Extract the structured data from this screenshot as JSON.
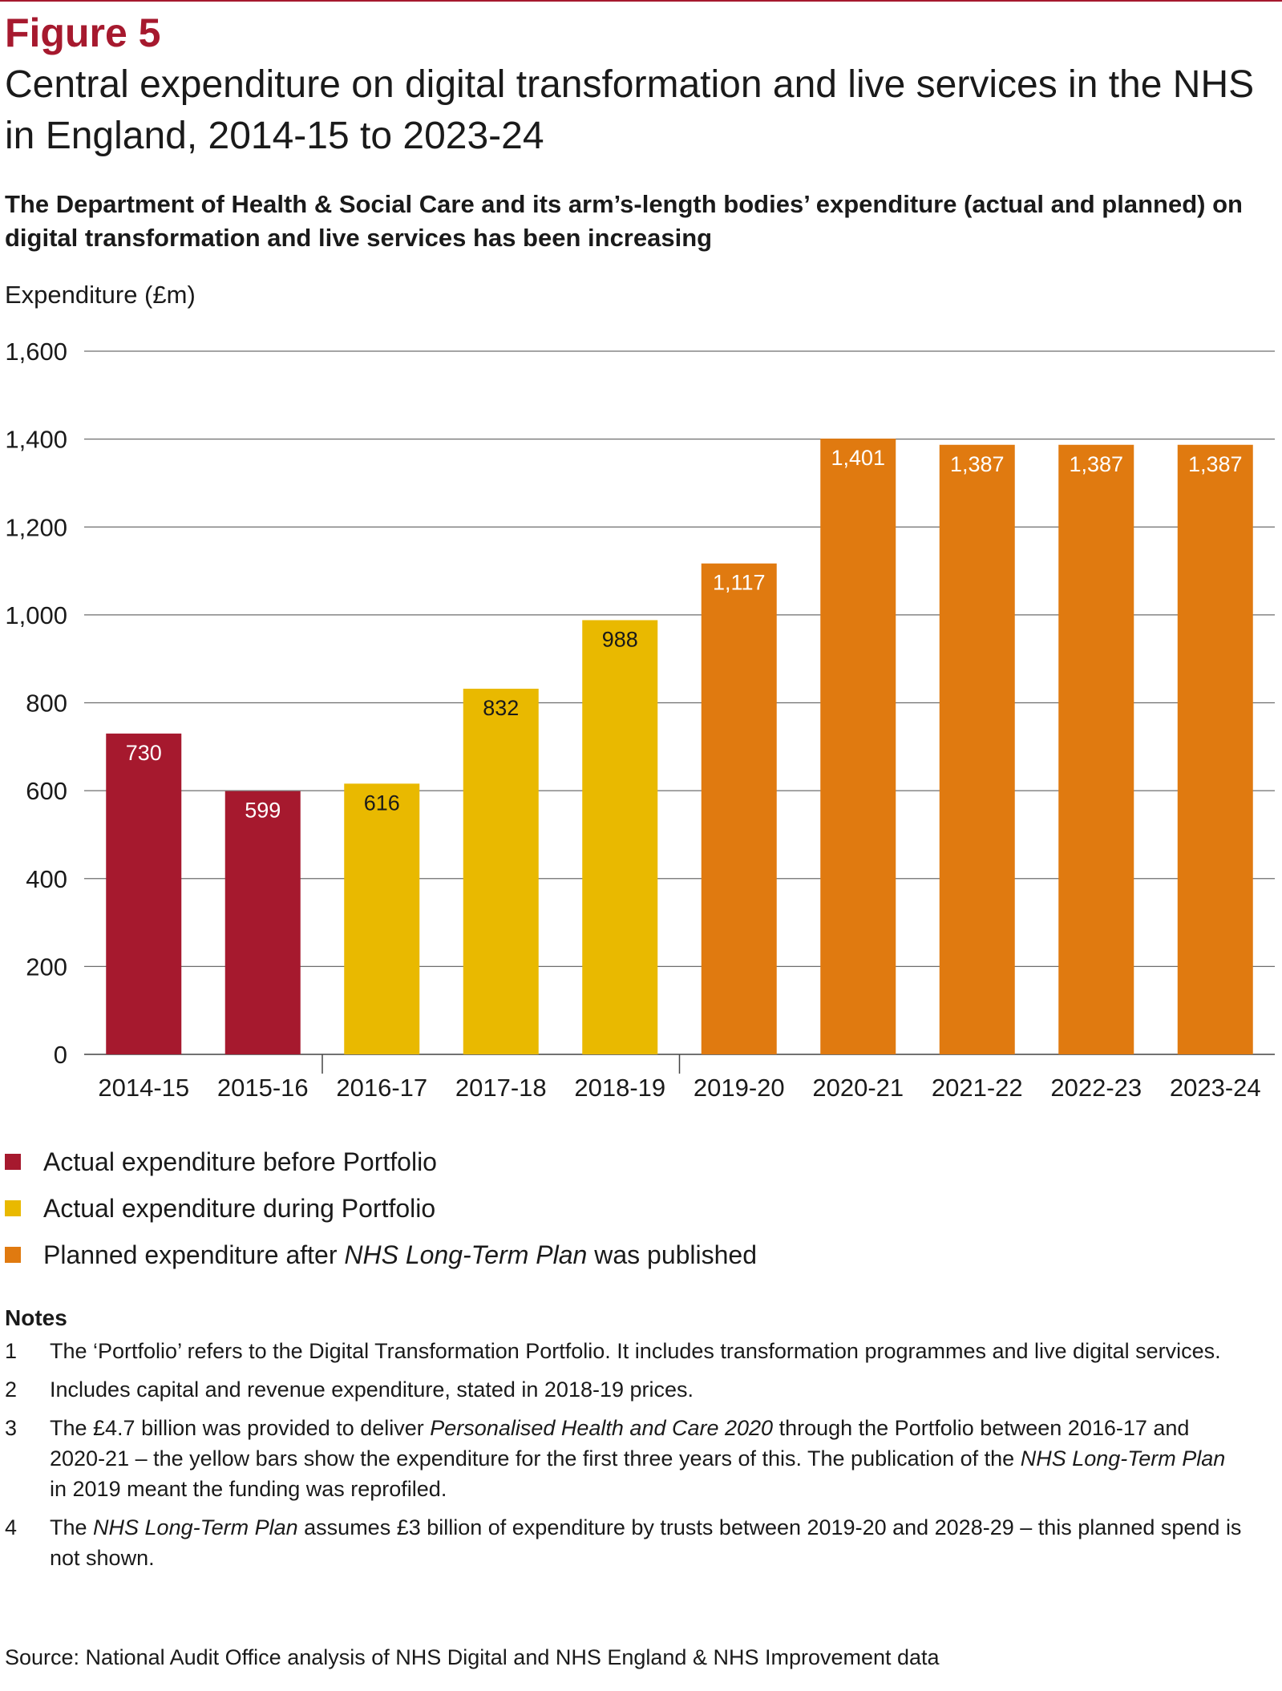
{
  "figure": {
    "label": "Figure 5",
    "title": "Central expenditure on digital transformation and live services in the NHS in England, 2014-15 to 2023-24",
    "subtitle": "The Department of Health & Social Care and its arm’s-length bodies’ expenditure (actual and planned) on digital transformation and live services has been increasing",
    "source": "Source: National Audit Office analysis of NHS Digital and NHS England & NHS Improvement data"
  },
  "colors": {
    "before": "#a6192e",
    "during": "#e9b900",
    "planned": "#e07a10",
    "label_light": "#ffffff",
    "label_dark": "#1a1a1a"
  },
  "chart_data": {
    "type": "bar",
    "title": "Central expenditure on digital transformation and live services in the NHS in England, 2014-15 to 2023-24",
    "xlabel": "",
    "ylabel": "Expenditure (£m)",
    "ylim": [
      0,
      1600
    ],
    "yticks": [
      0,
      200,
      400,
      600,
      800,
      1000,
      1200,
      1400,
      1600
    ],
    "ytick_labels": [
      "0",
      "200",
      "400",
      "600",
      "800",
      "1,000",
      "1,200",
      "1,400",
      "1,600"
    ],
    "grid": true,
    "categories": [
      "2014-15",
      "2015-16",
      "2016-17",
      "2017-18",
      "2018-19",
      "2019-20",
      "2020-21",
      "2021-22",
      "2022-23",
      "2023-24"
    ],
    "values": [
      730,
      599,
      616,
      832,
      988,
      1117,
      1401,
      1387,
      1387,
      1387
    ],
    "value_labels": [
      "730",
      "599",
      "616",
      "832",
      "988",
      "1,117",
      "1,401",
      "1,387",
      "1,387",
      "1,387"
    ],
    "groups": [
      "before",
      "before",
      "during",
      "during",
      "during",
      "planned",
      "planned",
      "planned",
      "planned",
      "planned"
    ],
    "legend_position": "bottom-left"
  },
  "legend": [
    {
      "key": "before",
      "label": "Actual expenditure before Portfolio"
    },
    {
      "key": "during",
      "label": "Actual expenditure during Portfolio"
    },
    {
      "key": "planned",
      "label_pre": "Planned expenditure after ",
      "label_italic": "NHS Long-Term Plan",
      "label_post": " was published"
    }
  ],
  "notes": {
    "title": "Notes",
    "items": [
      {
        "num": "1",
        "text": "The ‘Portfolio’ refers to the Digital Transformation Portfolio. It includes transformation programmes and live digital services."
      },
      {
        "num": "2",
        "text": "Includes capital and revenue expenditure, stated in 2018-19 prices."
      },
      {
        "num": "3",
        "p1": "The £4.7 billion was provided to deliver ",
        "i1": "Personalised Health and Care 2020",
        "p2": " through the Portfolio between 2016-17 and 2020-21 – the yellow bars show the expenditure for the first three years of this. The publication of the ",
        "i2": "NHS Long-Term Plan",
        "p3": " in 2019 meant the funding was reprofiled."
      },
      {
        "num": "4",
        "p1": "The ",
        "i1": "NHS Long-Term Plan",
        "p2": " assumes £3 billion of expenditure by trusts between 2019-20 and 2028-29 – this planned spend is not shown."
      }
    ]
  }
}
